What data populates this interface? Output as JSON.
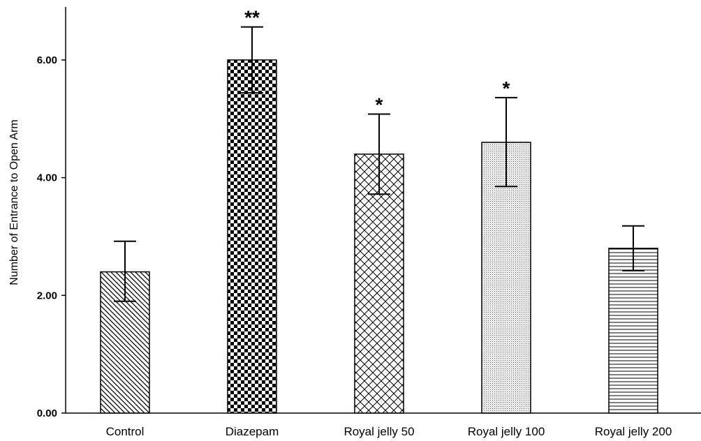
{
  "chart_data": {
    "type": "bar",
    "title": "",
    "xlabel": "",
    "ylabel": "Number of Entrance to Open Arm",
    "categories": [
      "Control",
      "Diazepam",
      "Royal jelly 50",
      "Royal jelly 100",
      "Royal jelly 200"
    ],
    "values": [
      2.4,
      6.0,
      4.4,
      4.6,
      2.8
    ],
    "error_upper": [
      2.92,
      6.56,
      5.08,
      5.36,
      3.18
    ],
    "error_lower": [
      1.9,
      5.44,
      3.72,
      3.85,
      2.42
    ],
    "significance": [
      "",
      "**",
      "*",
      "*",
      ""
    ],
    "patterns": [
      "diagonal-hatch",
      "checkerboard",
      "crosshatch",
      "fine-dots",
      "horizontal-lines"
    ],
    "ylim": [
      0,
      6.9
    ],
    "yticks": [
      0,
      2,
      4,
      6
    ],
    "ytick_labels": [
      "0.00",
      "2.00",
      "4.00",
      "6.00"
    ],
    "grid": false,
    "colors": {
      "bar_stroke": "#000000",
      "bar_fill": "#ffffff",
      "ink": "#000000"
    }
  }
}
